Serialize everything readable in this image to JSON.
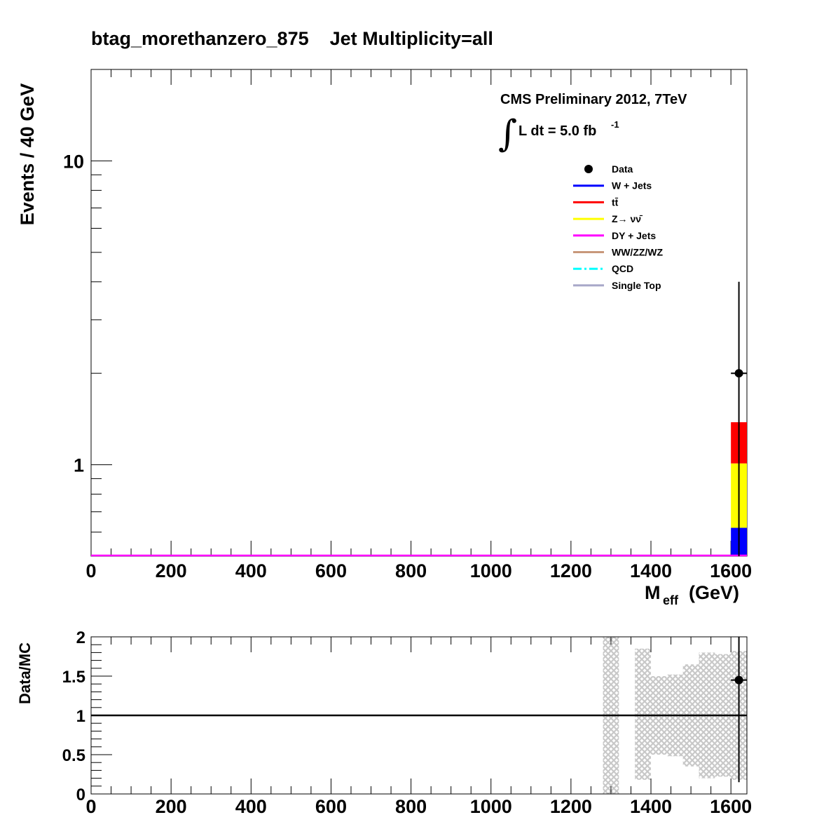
{
  "chart_data": [
    {
      "type": "bar",
      "title": "btag_morethanzero_875    Jet Multiplicity=all",
      "annotations": [
        "CMS Preliminary 2012, 7TeV",
        "L dt = 5.0 fb"
      ],
      "lumi_exponent": "-1",
      "integral_symbol": "∫",
      "xlabel_main": "M",
      "xlabel_sub": "eff",
      "xlabel_unit": "(GeV)",
      "ylabel": "Events / 40 GeV",
      "xlim": [
        0,
        1640
      ],
      "ylim": [
        0.5,
        20
      ],
      "log_y": true,
      "legend_placement": "top-right",
      "x_ticks": [
        "0",
        "200",
        "400",
        "600",
        "800",
        "1000",
        "1200",
        "1400",
        "1600"
      ],
      "y_ticks": [
        "1",
        "10"
      ],
      "legend": [
        {
          "label": "Data",
          "kind": "marker",
          "color": "#000000"
        },
        {
          "label": "W + Jets",
          "kind": "line",
          "color": "#0000ff"
        },
        {
          "label": "t̅t",
          "kind": "line",
          "color": "#ff0000",
          "display": "tt̄"
        },
        {
          "label": "Z→ νν̄",
          "kind": "line",
          "color": "#ffff00"
        },
        {
          "label": "DY + Jets",
          "kind": "line",
          "color": "#ff00ff"
        },
        {
          "label": "WW/ZZ/WZ",
          "kind": "line",
          "color": "#c8987a"
        },
        {
          "label": "QCD",
          "kind": "dashdot",
          "color": "#00ffff"
        },
        {
          "label": "Single Top",
          "kind": "line",
          "color": "#a8a8c8"
        }
      ],
      "stack": {
        "bin": [
          1600,
          1640
        ],
        "components": [
          {
            "name": "W + Jets",
            "color": "#0000ff",
            "value": 0.62
          },
          {
            "name": "Z→ νν̄",
            "color": "#ffff00",
            "value": 0.39
          },
          {
            "name": "tt̄",
            "color": "#ff0000",
            "value": 0.37
          }
        ],
        "total": 1.38
      },
      "dy_line": {
        "color": "#ff00ff",
        "value": 0.5
      },
      "data_points": [
        {
          "x": 1620,
          "y": 2.0,
          "err_low": 1.55,
          "err_high": 4.0
        }
      ]
    },
    {
      "type": "scatter",
      "ylabel": "Data/MC",
      "xlim": [
        0,
        1640
      ],
      "ylim": [
        0,
        2
      ],
      "x_ticks": [
        "0",
        "200",
        "400",
        "600",
        "800",
        "1000",
        "1200",
        "1400",
        "1600"
      ],
      "y_ticks": [
        "0",
        "0.5",
        "1",
        "1.5",
        "2"
      ],
      "reference_line": 1,
      "uncertainty_band": [
        {
          "x0": 1280,
          "x1": 1320,
          "lo": 0.0,
          "hi": 2.0
        },
        {
          "x0": 1360,
          "x1": 1400,
          "lo": 0.18,
          "hi": 1.85
        },
        {
          "x0": 1400,
          "x1": 1440,
          "lo": 0.5,
          "hi": 1.5
        },
        {
          "x0": 1440,
          "x1": 1480,
          "lo": 0.48,
          "hi": 1.52
        },
        {
          "x0": 1480,
          "x1": 1520,
          "lo": 0.35,
          "hi": 1.65
        },
        {
          "x0": 1520,
          "x1": 1560,
          "lo": 0.2,
          "hi": 1.8
        },
        {
          "x0": 1560,
          "x1": 1600,
          "lo": 0.22,
          "hi": 1.78
        },
        {
          "x0": 1600,
          "x1": 1640,
          "lo": 0.18,
          "hi": 1.82
        }
      ],
      "data_points": [
        {
          "x": 1620,
          "y": 1.45,
          "err_low": 1.3,
          "err_high": 1.0
        }
      ]
    }
  ]
}
